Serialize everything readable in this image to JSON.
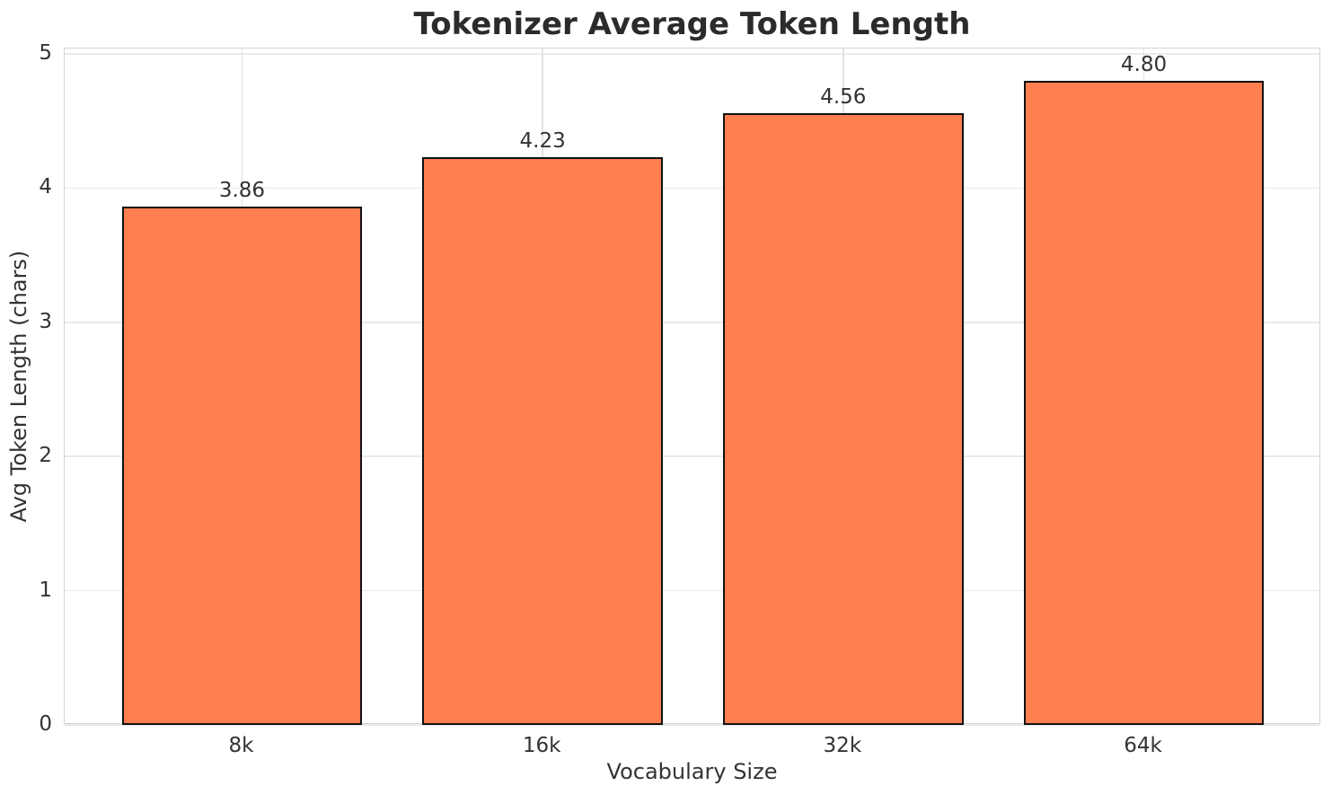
{
  "chart_data": {
    "type": "bar",
    "title": "Tokenizer Average Token Length",
    "xlabel": "Vocabulary Size",
    "ylabel": "Avg Token Length (chars)",
    "categories": [
      "8k",
      "16k",
      "32k",
      "64k"
    ],
    "values": [
      3.86,
      4.23,
      4.56,
      4.8
    ],
    "value_labels": [
      "3.86",
      "4.23",
      "4.56",
      "4.80"
    ],
    "yticks": [
      0,
      1,
      2,
      3,
      4,
      5
    ],
    "ylim": [
      0,
      5.04
    ],
    "grid": true,
    "legend": "none",
    "colors": {
      "bar_fill": "#FF7F50",
      "bar_edge": "#111111",
      "grid_h": "#e9e9e9",
      "grid_v": "#e2e2e2",
      "spine": "#d4d4d4",
      "text": "#333333",
      "title": "#2b2b2b"
    }
  }
}
